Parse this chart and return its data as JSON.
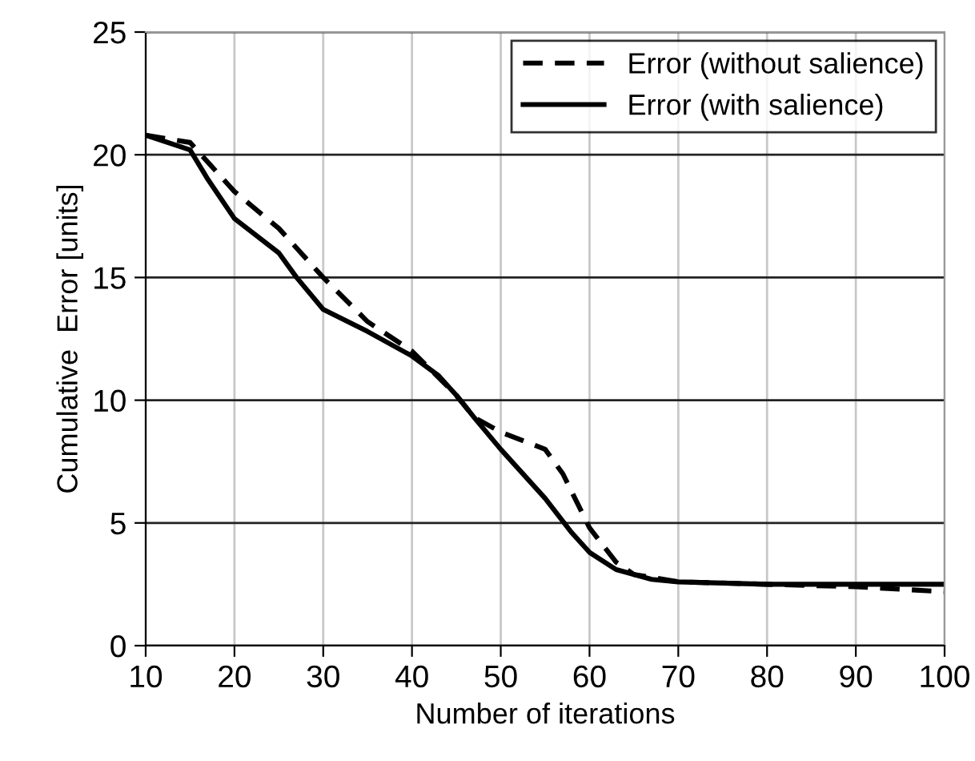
{
  "chart_data": {
    "type": "line",
    "xlabel": "Number of iterations",
    "ylabel": "Cumulative  Error [units]",
    "xlim": [
      10,
      100
    ],
    "xticks": [
      10,
      20,
      30,
      40,
      50,
      60,
      70,
      80,
      90,
      100
    ],
    "ylim": [
      0,
      25
    ],
    "yticks": [
      0,
      5,
      10,
      15,
      20,
      25
    ],
    "grid": true,
    "legend": "top right",
    "marker": "none",
    "series": [
      {
        "name": "Error (without salience)",
        "color": "#000000",
        "line_style": "dashed",
        "x": [
          10,
          15,
          20,
          25,
          30,
          35,
          40,
          45,
          47,
          50,
          55,
          57,
          60,
          63,
          65,
          70,
          80,
          90,
          100
        ],
        "values": [
          20.8,
          20.5,
          18.5,
          17,
          15,
          13.2,
          12,
          10.2,
          9.3,
          8.7,
          8.0,
          7.0,
          4.8,
          3.4,
          2.9,
          2.6,
          2.5,
          2.4,
          2.2
        ]
      },
      {
        "name": "Error (with salience)",
        "color": "#000000",
        "line_style": "solid",
        "x": [
          10,
          15,
          17,
          20,
          25,
          27,
          30,
          35,
          40,
          43,
          45,
          47,
          50,
          55,
          58,
          60,
          63,
          67,
          70,
          80,
          100
        ],
        "values": [
          20.8,
          20.2,
          19,
          17.4,
          16,
          15,
          13.7,
          12.8,
          11.8,
          11,
          10.2,
          9.3,
          8,
          6,
          4.6,
          3.8,
          3.1,
          2.7,
          2.6,
          2.5,
          2.5
        ]
      }
    ]
  }
}
